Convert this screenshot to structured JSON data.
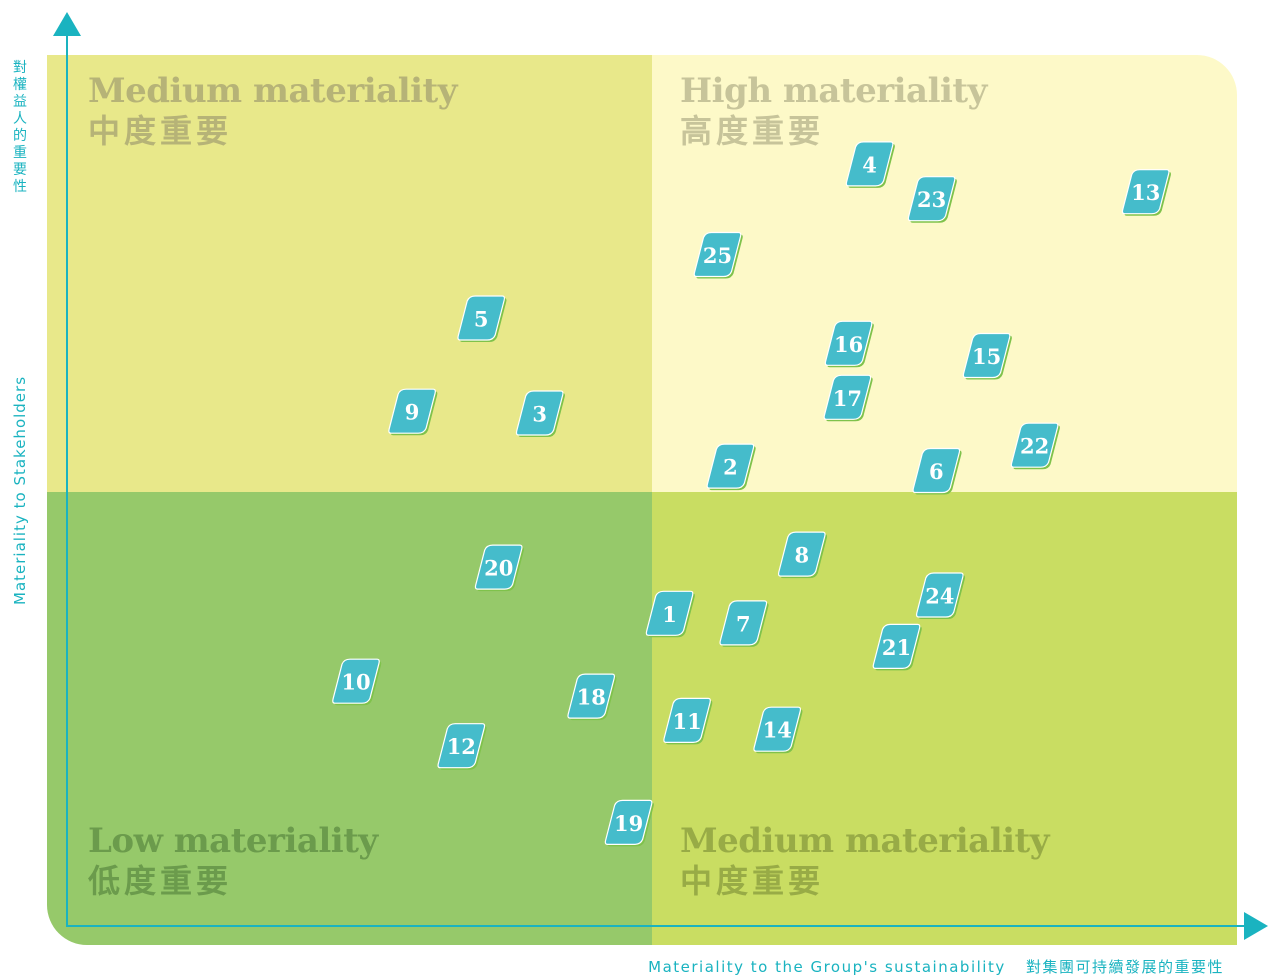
{
  "quadrants": {
    "top_left": {
      "en": "Medium materiality",
      "zh": "中度重要",
      "bg": "#e8e88a",
      "text": "#b6b377"
    },
    "top_right": {
      "en": "High materiality",
      "zh": "高度重要",
      "bg": "#fdf9c8",
      "text": "#c7c49a"
    },
    "bottom_left": {
      "en": "Low materiality",
      "zh": "低度重要",
      "bg": "#96c96a",
      "text": "#6b9b4c"
    },
    "bottom_right": {
      "en": "Medium materiality",
      "zh": "中度重要",
      "bg": "#c9dd62",
      "text": "#98ab46"
    }
  },
  "colors": {
    "axis": "#1ab3c0",
    "marker": "#45bccb",
    "marker_edge": "#7fc24b",
    "marker_text": "#ffffff"
  },
  "chart_data": {
    "type": "scatter",
    "xlabel": "Materiality to the Group's sustainability",
    "xlabel_zh": "對集團可持續發展的重要性",
    "ylabel": "Materiality to Stakeholders",
    "ylabel_zh": "對權益人的重要性",
    "xlim": [
      0,
      100
    ],
    "ylim": [
      0,
      100
    ],
    "points": [
      {
        "label": "1",
        "x": 51.5,
        "y": 35.9
      },
      {
        "label": "2",
        "x": 56.7,
        "y": 52.8
      },
      {
        "label": "3",
        "x": 40.4,
        "y": 58.9
      },
      {
        "label": "4",
        "x": 68.6,
        "y": 87.5
      },
      {
        "label": "5",
        "x": 35.4,
        "y": 69.8
      },
      {
        "label": "6",
        "x": 74.3,
        "y": 52.3
      },
      {
        "label": "7",
        "x": 57.8,
        "y": 34.8
      },
      {
        "label": "8",
        "x": 62.8,
        "y": 42.7
      },
      {
        "label": "9",
        "x": 29.5,
        "y": 59.1
      },
      {
        "label": "10",
        "x": 24.7,
        "y": 28.1
      },
      {
        "label": "11",
        "x": 53.0,
        "y": 23.6
      },
      {
        "label": "12",
        "x": 33.7,
        "y": 20.7
      },
      {
        "label": "13",
        "x": 92.2,
        "y": 84.3
      },
      {
        "label": "14",
        "x": 60.7,
        "y": 22.6
      },
      {
        "label": "15",
        "x": 78.6,
        "y": 65.5
      },
      {
        "label": "16",
        "x": 66.8,
        "y": 66.9
      },
      {
        "label": "17",
        "x": 66.7,
        "y": 60.7
      },
      {
        "label": "18",
        "x": 44.8,
        "y": 26.4
      },
      {
        "label": "19",
        "x": 48.0,
        "y": 11.9
      },
      {
        "label": "20",
        "x": 36.9,
        "y": 41.2
      },
      {
        "label": "21",
        "x": 70.9,
        "y": 32.1
      },
      {
        "label": "22",
        "x": 82.7,
        "y": 55.2
      },
      {
        "label": "23",
        "x": 73.9,
        "y": 83.5
      },
      {
        "label": "24",
        "x": 74.6,
        "y": 38.0
      },
      {
        "label": "25",
        "x": 55.6,
        "y": 77.1
      }
    ]
  }
}
